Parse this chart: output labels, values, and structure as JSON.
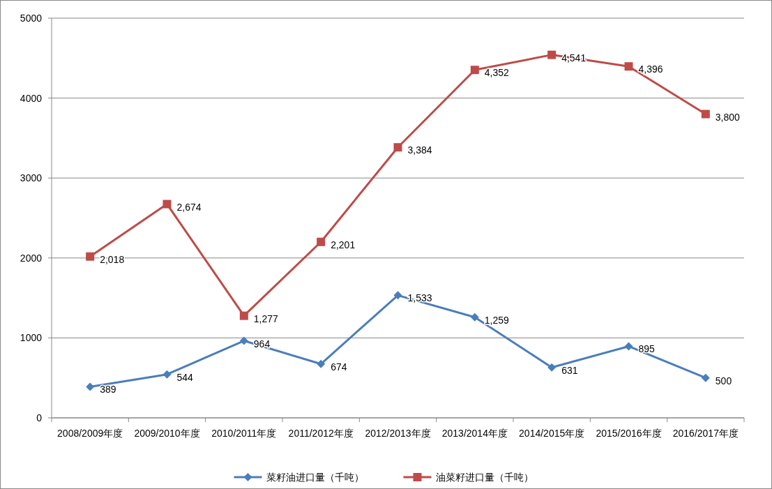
{
  "chart_data": {
    "type": "line",
    "categories": [
      "2008/2009年度",
      "2009/2010年度",
      "2010/2011年度",
      "2011/2012年度",
      "2012/2013年度",
      "2013/2014年度",
      "2014/2015年度",
      "2015/2016年度",
      "2016/2017年度"
    ],
    "series": [
      {
        "name": "菜籽油进口量（千吨）",
        "color": "#4a7ebb",
        "marker": "diamond",
        "values": [
          389,
          544,
          964,
          674,
          1533,
          1259,
          631,
          895,
          500
        ],
        "value_labels": [
          "389",
          "544",
          "964",
          "674",
          "1,533",
          "1,259",
          "631",
          "895",
          "500"
        ]
      },
      {
        "name": "油菜籽进口量（千吨）",
        "color": "#be4b48",
        "marker": "square",
        "values": [
          2018,
          2674,
          1277,
          2201,
          3384,
          4352,
          4541,
          4396,
          3800
        ],
        "value_labels": [
          "2,018",
          "2,674",
          "1,277",
          "2,201",
          "3,384",
          "4,352",
          "4,541",
          "4,396",
          "3,800"
        ]
      }
    ],
    "ylim": [
      0,
      5000
    ],
    "yticks": [
      0,
      1000,
      2000,
      3000,
      4000,
      5000
    ],
    "grid": "y",
    "legend": "bottom",
    "line_style": "solid"
  }
}
